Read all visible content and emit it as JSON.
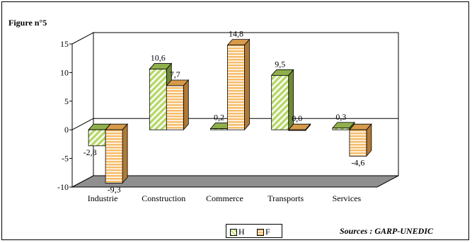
{
  "figure_label": "Figure n°5",
  "source": "Sources : GARP-UNEDIC",
  "colors": {
    "H_front": "#b7d96a",
    "H_stripe": "#ffffff",
    "H_top": "#8faf4c",
    "H_side": "#6f8a36",
    "F_front": "#f6bd6c",
    "F_stripe": "#ffffff",
    "F_top": "#d69a4a",
    "F_side": "#b07a36",
    "floor": "#8f8f8f",
    "wall": "#ffffff"
  },
  "chart_data": {
    "type": "bar",
    "categories": [
      "Industrie",
      "Construction",
      "Commerce",
      "Transports",
      "Services"
    ],
    "series": [
      {
        "name": "H",
        "values": [
          -2.8,
          10.6,
          0.2,
          9.5,
          0.3
        ],
        "labels": [
          "-2,8",
          "10,6",
          "0,2",
          "9,5",
          "0,3"
        ]
      },
      {
        "name": "F",
        "values": [
          -9.3,
          7.7,
          14.8,
          0.0,
          -4.6
        ],
        "labels": [
          "-9,3",
          "7,7",
          "14,8",
          "0,0",
          "-4,6"
        ]
      }
    ],
    "title": "",
    "xlabel": "",
    "ylabel": "",
    "ylim": [
      -10,
      15
    ],
    "yticks": [
      15,
      10,
      5,
      0,
      -5,
      -10
    ],
    "ytick_labels": [
      "15",
      "10",
      "5",
      "0",
      "-5",
      "-10"
    ],
    "grid": false,
    "legend": "bottom-center"
  }
}
